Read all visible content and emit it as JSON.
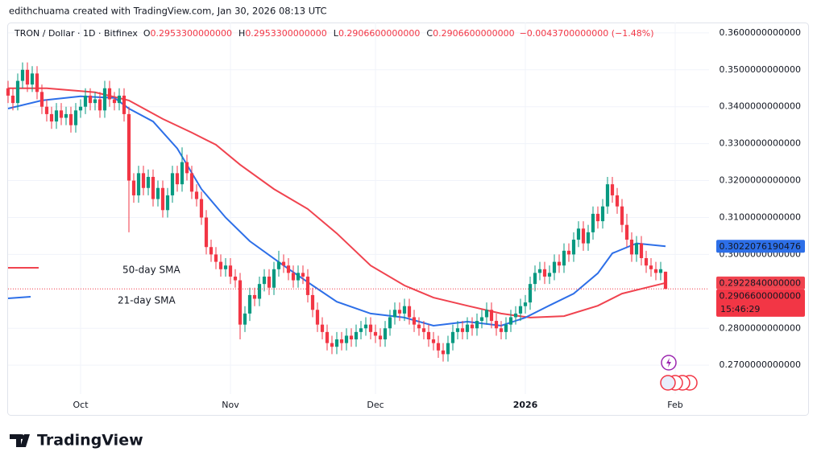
{
  "header": {
    "attribution": "edithchuama created with TradingView.com, Jan 30, 2026 08:13 UTC",
    "symbol": "TRON / Dollar · 1D · Bitfinex",
    "ohlc": [
      {
        "key": "O",
        "value": "0.2953300000000"
      },
      {
        "key": "H",
        "value": "0.2953300000000"
      },
      {
        "key": "L",
        "value": "0.2906600000000"
      },
      {
        "key": "C",
        "value": "0.2906600000000"
      }
    ],
    "change": "−0.0043700000000 (−1.48%)"
  },
  "chart_data": {
    "type": "candlestick",
    "up_color": "#089981",
    "down_color": "#f23645",
    "open": [
      0.345,
      0.343,
      0.341,
      0.347,
      0.35,
      0.346,
      0.349,
      0.344,
      0.34,
      0.338,
      0.336,
      0.339,
      0.337,
      0.338,
      0.335,
      0.339,
      0.34,
      0.343,
      0.341,
      0.342,
      0.339,
      0.345,
      0.342,
      0.341,
      0.343,
      0.338,
      0.32,
      0.316,
      0.322,
      0.318,
      0.321,
      0.315,
      0.318,
      0.312,
      0.316,
      0.322,
      0.319,
      0.325,
      0.322,
      0.317,
      0.315,
      0.31,
      0.302,
      0.3,
      0.298,
      0.296,
      0.297,
      0.294,
      0.293,
      0.281,
      0.284,
      0.289,
      0.288,
      0.292,
      0.294,
      0.291,
      0.296,
      0.298,
      0.297,
      0.295,
      0.293,
      0.295,
      0.294,
      0.289,
      0.285,
      0.281,
      0.279,
      0.276,
      0.275,
      0.277,
      0.276,
      0.278,
      0.277,
      0.279,
      0.28,
      0.281,
      0.279,
      0.278,
      0.277,
      0.28,
      0.283,
      0.285,
      0.284,
      0.286,
      0.283,
      0.281,
      0.28,
      0.279,
      0.277,
      0.276,
      0.274,
      0.273,
      0.276,
      0.279,
      0.28,
      0.279,
      0.281,
      0.28,
      0.282,
      0.283,
      0.285,
      0.282,
      0.28,
      0.279,
      0.281,
      0.283,
      0.284,
      0.286,
      0.287,
      0.292,
      0.295,
      0.296,
      0.294,
      0.295,
      0.298,
      0.297,
      0.301,
      0.3,
      0.304,
      0.307,
      0.303,
      0.306,
      0.311,
      0.309,
      0.313,
      0.319,
      0.316,
      0.313,
      0.308,
      0.304,
      0.3,
      0.303,
      0.299,
      0.297,
      0.296,
      0.295,
      0.29533
    ],
    "high": [
      0.347,
      0.345,
      0.349,
      0.352,
      0.352,
      0.351,
      0.351,
      0.346,
      0.342,
      0.34,
      0.341,
      0.341,
      0.34,
      0.34,
      0.341,
      0.342,
      0.345,
      0.345,
      0.344,
      0.344,
      0.347,
      0.347,
      0.344,
      0.345,
      0.345,
      0.34,
      0.322,
      0.324,
      0.324,
      0.323,
      0.323,
      0.32,
      0.32,
      0.318,
      0.324,
      0.324,
      0.329,
      0.327,
      0.324,
      0.319,
      0.317,
      0.312,
      0.304,
      0.302,
      0.3,
      0.299,
      0.299,
      0.296,
      0.295,
      0.286,
      0.291,
      0.291,
      0.294,
      0.296,
      0.296,
      0.298,
      0.301,
      0.3,
      0.299,
      0.297,
      0.297,
      0.297,
      0.296,
      0.291,
      0.287,
      0.283,
      0.281,
      0.278,
      0.279,
      0.279,
      0.28,
      0.28,
      0.281,
      0.282,
      0.283,
      0.283,
      0.281,
      0.28,
      0.282,
      0.285,
      0.287,
      0.287,
      0.288,
      0.288,
      0.285,
      0.283,
      0.282,
      0.281,
      0.279,
      0.278,
      0.276,
      0.278,
      0.281,
      0.282,
      0.282,
      0.283,
      0.283,
      0.284,
      0.285,
      0.287,
      0.287,
      0.284,
      0.282,
      0.283,
      0.285,
      0.286,
      0.288,
      0.289,
      0.294,
      0.297,
      0.298,
      0.298,
      0.297,
      0.3,
      0.3,
      0.303,
      0.303,
      0.306,
      0.309,
      0.309,
      0.308,
      0.313,
      0.313,
      0.315,
      0.321,
      0.321,
      0.318,
      0.315,
      0.311,
      0.306,
      0.305,
      0.305,
      0.301,
      0.299,
      0.298,
      0.298,
      0.29533
    ],
    "low": [
      0.341,
      0.339,
      0.339,
      0.345,
      0.344,
      0.344,
      0.342,
      0.338,
      0.336,
      0.334,
      0.334,
      0.335,
      0.335,
      0.333,
      0.333,
      0.337,
      0.338,
      0.339,
      0.339,
      0.337,
      0.337,
      0.34,
      0.339,
      0.339,
      0.336,
      0.306,
      0.314,
      0.314,
      0.316,
      0.316,
      0.313,
      0.313,
      0.31,
      0.31,
      0.314,
      0.317,
      0.317,
      0.32,
      0.315,
      0.313,
      0.308,
      0.3,
      0.298,
      0.296,
      0.294,
      0.294,
      0.292,
      0.291,
      0.277,
      0.279,
      0.282,
      0.286,
      0.286,
      0.29,
      0.289,
      0.289,
      0.294,
      0.295,
      0.293,
      0.291,
      0.291,
      0.292,
      0.287,
      0.283,
      0.279,
      0.277,
      0.274,
      0.273,
      0.273,
      0.274,
      0.274,
      0.275,
      0.275,
      0.277,
      0.278,
      0.277,
      0.276,
      0.275,
      0.275,
      0.278,
      0.281,
      0.282,
      0.282,
      0.281,
      0.279,
      0.278,
      0.277,
      0.275,
      0.274,
      0.272,
      0.271,
      0.271,
      0.274,
      0.277,
      0.277,
      0.277,
      0.278,
      0.278,
      0.28,
      0.281,
      0.28,
      0.278,
      0.277,
      0.277,
      0.279,
      0.281,
      0.282,
      0.284,
      0.285,
      0.29,
      0.293,
      0.292,
      0.292,
      0.293,
      0.295,
      0.295,
      0.298,
      0.298,
      0.302,
      0.301,
      0.301,
      0.304,
      0.307,
      0.307,
      0.311,
      0.314,
      0.311,
      0.306,
      0.302,
      0.298,
      0.298,
      0.297,
      0.295,
      0.294,
      0.293,
      0.293,
      0.29066
    ],
    "close": [
      0.343,
      0.341,
      0.347,
      0.35,
      0.346,
      0.349,
      0.344,
      0.34,
      0.338,
      0.336,
      0.339,
      0.337,
      0.338,
      0.335,
      0.339,
      0.34,
      0.343,
      0.341,
      0.342,
      0.339,
      0.345,
      0.342,
      0.341,
      0.343,
      0.338,
      0.32,
      0.316,
      0.322,
      0.318,
      0.321,
      0.315,
      0.318,
      0.312,
      0.316,
      0.322,
      0.319,
      0.325,
      0.322,
      0.317,
      0.315,
      0.31,
      0.302,
      0.3,
      0.298,
      0.296,
      0.297,
      0.294,
      0.293,
      0.281,
      0.284,
      0.289,
      0.288,
      0.292,
      0.294,
      0.291,
      0.296,
      0.298,
      0.297,
      0.295,
      0.293,
      0.295,
      0.294,
      0.289,
      0.285,
      0.281,
      0.279,
      0.276,
      0.275,
      0.277,
      0.276,
      0.278,
      0.277,
      0.279,
      0.28,
      0.281,
      0.279,
      0.278,
      0.277,
      0.28,
      0.283,
      0.285,
      0.284,
      0.286,
      0.283,
      0.281,
      0.28,
      0.279,
      0.277,
      0.276,
      0.274,
      0.273,
      0.276,
      0.279,
      0.28,
      0.279,
      0.281,
      0.28,
      0.282,
      0.283,
      0.285,
      0.282,
      0.28,
      0.279,
      0.281,
      0.283,
      0.284,
      0.286,
      0.287,
      0.292,
      0.295,
      0.296,
      0.294,
      0.295,
      0.298,
      0.297,
      0.301,
      0.3,
      0.304,
      0.307,
      0.303,
      0.306,
      0.311,
      0.309,
      0.313,
      0.319,
      0.316,
      0.313,
      0.308,
      0.304,
      0.3,
      0.303,
      0.299,
      0.297,
      0.296,
      0.295,
      0.296,
      0.29066
    ],
    "xlim": [
      0,
      145
    ],
    "xticks": [
      {
        "value": 15,
        "label": "Oct"
      },
      {
        "value": 46,
        "label": "Nov"
      },
      {
        "value": 76,
        "label": "Dec"
      },
      {
        "value": 107,
        "label": "2026"
      },
      {
        "value": 138,
        "label": "Feb"
      }
    ],
    "ylim": [
      0.2622,
      0.3628
    ],
    "yticks": [
      {
        "value": 0.27,
        "label": "0.2700000000000"
      },
      {
        "value": 0.28,
        "label": "0.2800000000000"
      },
      {
        "value": 0.3,
        "label": "0.3000000000000"
      },
      {
        "value": 0.31,
        "label": "0.3100000000000"
      },
      {
        "value": 0.32,
        "label": "0.3200000000000"
      },
      {
        "value": 0.33,
        "label": "0.3300000000000"
      },
      {
        "value": 0.34,
        "label": "0.3400000000000"
      },
      {
        "value": 0.35,
        "label": "0.3500000000000"
      },
      {
        "value": 0.36,
        "label": "0.3600000000000"
      }
    ],
    "grid": true,
    "series": [
      {
        "name": "50-day SMA",
        "color": "#f0434f",
        "x": [
          0,
          8,
          18,
          25,
          32,
          38,
          43,
          48,
          55,
          62,
          68,
          75,
          82,
          88,
          95,
          102,
          108,
          115,
          122,
          127,
          132,
          136
        ],
        "values": [
          0.345,
          0.345,
          0.3439,
          0.3417,
          0.3367,
          0.333,
          0.3297,
          0.3243,
          0.3177,
          0.3123,
          0.3057,
          0.297,
          0.2916,
          0.2883,
          0.2861,
          0.284,
          0.2829,
          0.2833,
          0.2861,
          0.2894,
          0.291,
          0.292284
        ],
        "last_label": "0.2922840000000"
      },
      {
        "name": "21-day SMA",
        "color": "#2d6fe8",
        "x": [
          0,
          7,
          15,
          22,
          25,
          30,
          35,
          40,
          45,
          50,
          57,
          63,
          68,
          75,
          82,
          88,
          95,
          102,
          107,
          112,
          117,
          122,
          125,
          130,
          136
        ],
        "values": [
          0.3395,
          0.3417,
          0.3428,
          0.3424,
          0.3395,
          0.336,
          0.3287,
          0.3177,
          0.31,
          0.3036,
          0.297,
          0.2916,
          0.2872,
          0.284,
          0.2829,
          0.2807,
          0.2818,
          0.2807,
          0.2829,
          0.2862,
          0.2894,
          0.2949,
          0.3003,
          0.303,
          0.3022076190476
        ],
        "last_label": "0.3022076190476"
      }
    ],
    "price_tag": {
      "value": 0.29066,
      "label": "0.2906600000000",
      "countdown": "15:46:29"
    }
  },
  "footer": {
    "brand": "TradingView"
  }
}
